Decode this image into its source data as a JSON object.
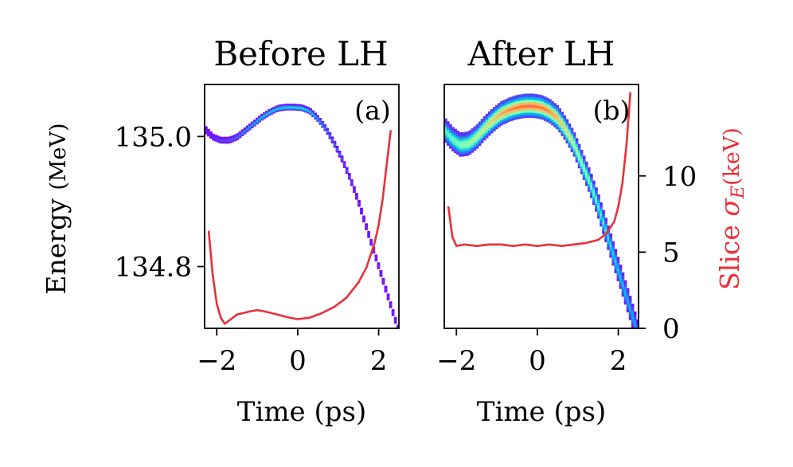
{
  "chart_data": [
    {
      "type": "heatmap",
      "title": "Before LH",
      "panel_label": "(a)",
      "xlabel": "Time (ps)",
      "ylabel_main": "Energy",
      "ylabel_unit": "(MeV)",
      "xlim": [
        -2.3,
        2.5
      ],
      "ylim": [
        134.705,
        135.08
      ],
      "xticks": [
        -2,
        0,
        2
      ],
      "xtick_labels": [
        "−2",
        "0",
        "2"
      ],
      "yticks": [
        135.0,
        134.8
      ],
      "ytick_labels": [
        "135.0",
        "134.8"
      ],
      "colormap": "rainbow",
      "beam_centroid": {
        "x": [
          -2.3,
          -2.1,
          -1.9,
          -1.7,
          -1.5,
          -1.3,
          -1.1,
          -0.9,
          -0.7,
          -0.5,
          -0.3,
          -0.1,
          0.1,
          0.3,
          0.5,
          0.7,
          0.9,
          1.1,
          1.3,
          1.5,
          1.7,
          1.9,
          2.1,
          2.3,
          2.5
        ],
        "y": [
          135.012,
          135.0,
          134.995,
          134.995,
          135.0,
          135.01,
          135.02,
          135.03,
          135.038,
          135.044,
          135.046,
          135.046,
          135.045,
          135.04,
          135.028,
          135.012,
          134.99,
          134.965,
          134.935,
          134.9,
          134.86,
          134.82,
          134.78,
          134.74,
          134.7
        ]
      },
      "beam_thickness": [
        0.01,
        0.008,
        0.008,
        0.008,
        0.008,
        0.008,
        0.008,
        0.008,
        0.008,
        0.008,
        0.008,
        0.008,
        0.008,
        0.008,
        0.008,
        0.008,
        0.008,
        0.008,
        0.008,
        0.008,
        0.008,
        0.008,
        0.008,
        0.008,
        0.008
      ],
      "beam_peak_level": [
        0.05,
        0.05,
        0.1,
        0.1,
        0.15,
        0.2,
        0.25,
        0.3,
        0.3,
        0.3,
        0.32,
        0.32,
        0.32,
        0.3,
        0.25,
        0.2,
        0.15,
        0.1,
        0.08,
        0.05,
        0.05,
        0.05,
        0.05,
        0.05,
        0.05
      ],
      "slice_sigma_E": {
        "x": [
          -2.2,
          -2.1,
          -2.0,
          -1.9,
          -1.8,
          -1.7,
          -1.5,
          -1.2,
          -1.0,
          -0.8,
          -0.5,
          -0.2,
          0.0,
          0.3,
          0.6,
          0.9,
          1.2,
          1.5,
          1.7,
          1.9,
          2.0,
          2.1,
          2.2,
          2.3
        ],
        "y": [
          6.4,
          3.5,
          1.6,
          0.7,
          0.3,
          0.5,
          0.9,
          1.1,
          1.2,
          1.1,
          0.9,
          0.7,
          0.6,
          0.7,
          1.0,
          1.4,
          2.0,
          3.0,
          4.0,
          5.6,
          6.8,
          8.5,
          10.8,
          13.0
        ]
      }
    },
    {
      "type": "heatmap",
      "title": "After LH",
      "panel_label": "(b)",
      "xlabel": "Time (ps)",
      "xlim": [
        -2.3,
        2.5
      ],
      "xticks": [
        -2,
        0,
        2
      ],
      "xtick_labels": [
        "−2",
        "0",
        "2"
      ],
      "y2label_prefix": "Slice ",
      "y2label_symbol": "σ",
      "y2label_subscript": "E",
      "y2label_unit": "(keV)",
      "y2lim": [
        0,
        16
      ],
      "y2ticks": [
        0,
        5,
        10
      ],
      "y2tick_labels": [
        "0",
        "5",
        "10"
      ],
      "colormap": "rainbow",
      "beam_centroid": {
        "x": [
          -2.3,
          -2.1,
          -1.9,
          -1.7,
          -1.5,
          -1.3,
          -1.1,
          -0.9,
          -0.7,
          -0.5,
          -0.3,
          -0.1,
          0.1,
          0.3,
          0.5,
          0.7,
          0.9,
          1.1,
          1.3,
          1.5,
          1.7,
          1.9,
          2.1,
          2.3,
          2.5
        ],
        "y": [
          135.012,
          134.997,
          134.988,
          134.99,
          135.0,
          135.014,
          135.026,
          135.036,
          135.042,
          135.046,
          135.048,
          135.048,
          135.046,
          135.04,
          135.03,
          135.012,
          134.99,
          134.96,
          134.93,
          134.895,
          134.855,
          134.815,
          134.775,
          134.735,
          134.695
        ]
      },
      "beam_thickness": [
        0.032,
        0.032,
        0.032,
        0.032,
        0.032,
        0.032,
        0.032,
        0.032,
        0.032,
        0.032,
        0.032,
        0.032,
        0.032,
        0.032,
        0.032,
        0.032,
        0.032,
        0.032,
        0.032,
        0.032,
        0.032,
        0.032,
        0.032,
        0.032,
        0.032
      ],
      "beam_peak_level": [
        0.4,
        0.45,
        0.5,
        0.55,
        0.6,
        0.66,
        0.72,
        0.78,
        0.82,
        0.85,
        0.86,
        0.86,
        0.85,
        0.82,
        0.76,
        0.7,
        0.62,
        0.55,
        0.48,
        0.42,
        0.36,
        0.32,
        0.28,
        0.25,
        0.22
      ],
      "slice_sigma_E": {
        "x": [
          -2.2,
          -2.1,
          -2.0,
          -1.8,
          -1.5,
          -1.2,
          -0.9,
          -0.6,
          -0.3,
          0.0,
          0.3,
          0.6,
          0.9,
          1.2,
          1.5,
          1.7,
          1.9,
          2.0,
          2.1,
          2.2,
          2.3
        ],
        "y": [
          8.0,
          6.0,
          5.4,
          5.5,
          5.4,
          5.5,
          5.5,
          5.4,
          5.5,
          5.4,
          5.5,
          5.4,
          5.5,
          5.6,
          5.8,
          6.2,
          7.0,
          8.0,
          9.5,
          12.0,
          15.5
        ]
      }
    }
  ],
  "colors": {
    "sigma_line": "#e8303a",
    "axes": "#000000"
  }
}
